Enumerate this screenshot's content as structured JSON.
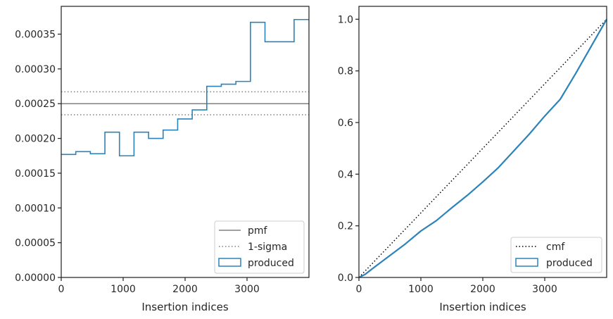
{
  "chart_data": [
    {
      "type": "step",
      "xlabel": "Insertion indices",
      "ylabel": "",
      "xlim": [
        0,
        4000
      ],
      "ylim": [
        0,
        0.00039
      ],
      "xticks": [
        0,
        1000,
        2000,
        3000
      ],
      "xtick_labels": [
        "0",
        "1000",
        "2000",
        "3000"
      ],
      "yticks": [
        0,
        5e-05,
        0.0001,
        0.00015,
        0.0002,
        0.00025,
        0.0003,
        0.00035
      ],
      "ytick_labels": [
        "0.00000",
        "0.00005",
        "0.00010",
        "0.00015",
        "0.00020",
        "0.00025",
        "0.00030",
        "0.00035"
      ],
      "legend_position": "lower-right",
      "colors": {
        "pmf": "#808080",
        "sigma": "#808080",
        "produced": "#2b83ba"
      },
      "lines": [
        {
          "name": "pmf",
          "style": "solid",
          "y": 0.00025
        },
        {
          "name": "1-sigma",
          "style": "dotted",
          "y": [
            0.000234,
            0.000267
          ]
        }
      ],
      "series": [
        {
          "name": "produced",
          "bin_edges": [
            0,
            235,
            470,
            705,
            940,
            1175,
            1410,
            1645,
            1880,
            2115,
            2350,
            2585,
            2820,
            3055,
            3290,
            3525,
            3760,
            4000
          ],
          "values": [
            0.000177,
            0.000181,
            0.000178,
            0.000209,
            0.000175,
            0.000209,
            0.0002,
            0.000212,
            0.000228,
            0.000241,
            0.000275,
            0.000278,
            0.000282,
            0.000367,
            0.000339,
            0.000339,
            0.000371
          ]
        }
      ]
    },
    {
      "type": "line",
      "xlabel": "Insertion indices",
      "ylabel": "",
      "xlim": [
        0,
        4000
      ],
      "ylim": [
        0,
        1.05
      ],
      "xticks": [
        0,
        1000,
        2000,
        3000
      ],
      "xtick_labels": [
        "0",
        "1000",
        "2000",
        "3000"
      ],
      "yticks": [
        0,
        0.2,
        0.4,
        0.6,
        0.8,
        1.0
      ],
      "ytick_labels": [
        "0.0",
        "0.2",
        "0.4",
        "0.6",
        "0.8",
        "1.0"
      ],
      "legend_position": "lower-right",
      "colors": {
        "cmf": "#000000",
        "produced": "#2b83ba"
      },
      "series": [
        {
          "name": "cmf",
          "style": "dotted",
          "x": [
            0,
            4000
          ],
          "y": [
            0,
            1.0
          ]
        },
        {
          "name": "produced",
          "style": "solid",
          "x": [
            0,
            100,
            250,
            500,
            750,
            1000,
            1250,
            1500,
            1750,
            2000,
            2250,
            2500,
            2750,
            3000,
            3250,
            3500,
            3750,
            4000
          ],
          "y": [
            0,
            0.012,
            0.04,
            0.085,
            0.13,
            0.18,
            0.22,
            0.27,
            0.318,
            0.37,
            0.425,
            0.49,
            0.555,
            0.625,
            0.69,
            0.79,
            0.895,
            1.0
          ]
        }
      ]
    }
  ]
}
